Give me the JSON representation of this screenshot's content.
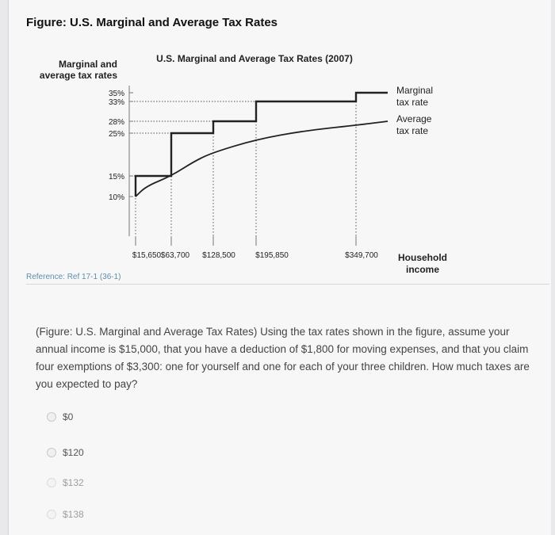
{
  "figure_title": "Figure: U.S. Marginal and Average Tax Rates",
  "reference": "Reference: Ref 17-1 (36-1)",
  "question": "(Figure: U.S. Marginal and Average Tax Rates) Using the tax rates shown in the figure, assume your annual income is $15,000, that you have a deduction of $1,800 for moving expenses, and that you claim four exemptions of $3,300: one for yourself and one for each of your three children. How much taxes are you expected to pay?",
  "options": [
    {
      "label": "$0"
    },
    {
      "label": "$120"
    },
    {
      "label": "$132"
    },
    {
      "label": "$138"
    }
  ],
  "colors": {
    "lines": "#222222",
    "guides": "#555555",
    "reference": "#5b8fa8"
  },
  "chart_data": {
    "type": "line",
    "title": "U.S. Marginal and Average Tax Rates (2007)",
    "ylabel_lines": [
      "Marginal and",
      "average tax rates"
    ],
    "xlabel_lines": [
      "Household",
      "income"
    ],
    "y_ticks": [
      "35%",
      "33%",
      "28%",
      "25%",
      "15%",
      "10%"
    ],
    "x_ticks": [
      "$15,650",
      "$63,700",
      "$128,500",
      "$195,850",
      "$349,700"
    ],
    "series": [
      {
        "name_lines": [
          "Marginal",
          "tax rate"
        ],
        "step": true,
        "points": [
          [
            0,
            10
          ],
          [
            15650,
            10
          ],
          [
            15650,
            15
          ],
          [
            63700,
            15
          ],
          [
            63700,
            25
          ],
          [
            128500,
            25
          ],
          [
            128500,
            28
          ],
          [
            195850,
            28
          ],
          [
            195850,
            33
          ],
          [
            349700,
            33
          ],
          [
            349700,
            35
          ],
          [
            400000,
            35
          ]
        ]
      },
      {
        "name_lines": [
          "Average",
          "tax rate"
        ],
        "step": false,
        "points": [
          [
            15650,
            10
          ],
          [
            30000,
            12.5
          ],
          [
            63700,
            15
          ],
          [
            100000,
            18.5
          ],
          [
            128500,
            20.5
          ],
          [
            195850,
            23.5
          ],
          [
            270000,
            25.6
          ],
          [
            349700,
            27
          ],
          [
            400000,
            28
          ]
        ]
      }
    ]
  }
}
